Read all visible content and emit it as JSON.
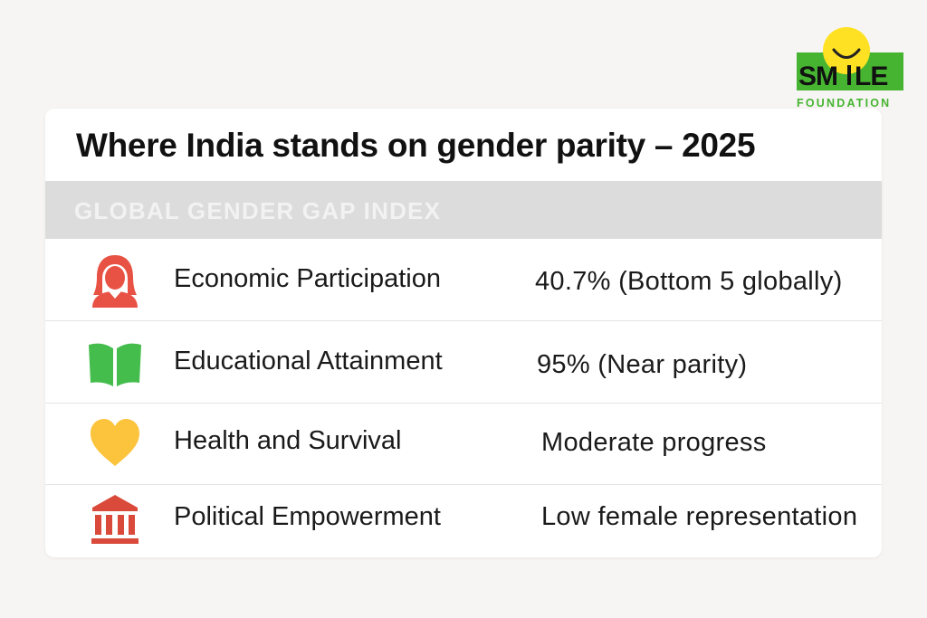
{
  "logo": {
    "name": "SMILE",
    "subtitle": "FOUNDATION",
    "colors": {
      "green": "#46b431",
      "yellow": "#ffe123"
    }
  },
  "card": {
    "title": "Where India stands on gender parity – 2025",
    "section_label": "GLOBAL GENDER GAP INDEX",
    "rows": [
      {
        "icon": "woman-icon",
        "icon_color": "#e85244",
        "label": "Economic Participation",
        "value": "40.7% (Bottom 5 globally)"
      },
      {
        "icon": "open-book-icon",
        "icon_color": "#44bd4d",
        "label": "Educational Attainment",
        "value": "95% (Near parity)"
      },
      {
        "icon": "heart-icon",
        "icon_color": "#fcc33c",
        "label": "Health and Survival",
        "value": "Moderate progress"
      },
      {
        "icon": "government-building-icon",
        "icon_color": "#d94a3a",
        "label": "Political Empowerment",
        "value": "Low female representation"
      }
    ]
  }
}
